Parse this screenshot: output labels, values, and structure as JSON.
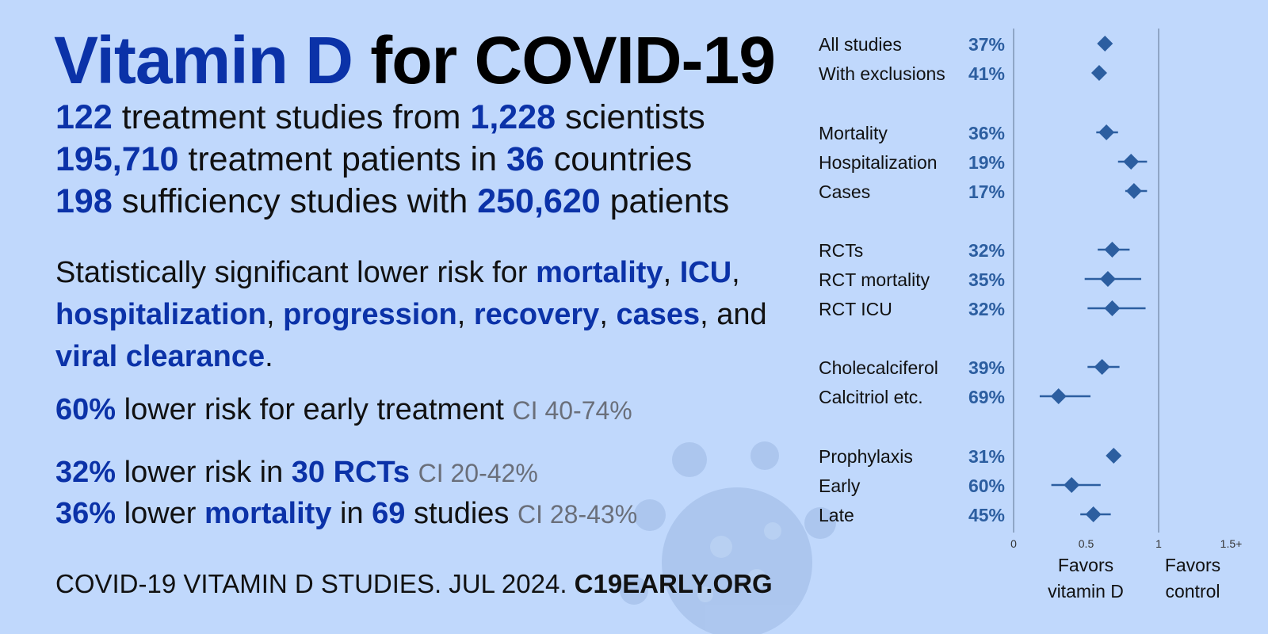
{
  "title": {
    "highlight": "Vitamin D",
    "rest": "for COVID-19"
  },
  "stats": [
    [
      {
        "v": "122",
        "h": true
      },
      {
        "v": " treatment studies from ",
        "h": false
      },
      {
        "v": "1,228",
        "h": true
      },
      {
        "v": " scientists",
        "h": false
      }
    ],
    [
      {
        "v": "195,710",
        "h": true
      },
      {
        "v": " treatment patients in ",
        "h": false
      },
      {
        "v": "36",
        "h": true
      },
      {
        "v": " countries",
        "h": false
      }
    ],
    [
      {
        "v": "198",
        "h": true
      },
      {
        "v": " sufficiency studies with ",
        "h": false
      },
      {
        "v": "250,620",
        "h": true
      },
      {
        "v": " patients",
        "h": false
      }
    ]
  ],
  "significant": [
    {
      "v": "Statistically significant lower risk for ",
      "h": false
    },
    {
      "v": "mortality",
      "h": true
    },
    {
      "v": ", ",
      "h": false
    },
    {
      "v": "ICU",
      "h": true
    },
    {
      "v": ", ",
      "h": false
    },
    {
      "v": "hospitalization",
      "h": true
    },
    {
      "v": ", ",
      "h": false
    },
    {
      "v": "progression",
      "h": true
    },
    {
      "v": ", ",
      "h": false
    },
    {
      "v": "recovery",
      "h": true
    },
    {
      "v": ", ",
      "h": false
    },
    {
      "v": "cases",
      "h": true
    },
    {
      "v": ", and ",
      "h": false
    },
    {
      "v": "viral clearance",
      "h": true
    },
    {
      "v": ".",
      "h": false
    }
  ],
  "early": {
    "pct": "60%",
    "text": " lower risk for early treatment ",
    "ci": "CI 40-74%"
  },
  "rct": {
    "pct": "32%",
    "t1": " lower risk in ",
    "count": "30 RCTs",
    "ci": "CI 20-42%"
  },
  "mort": {
    "pct": "36%",
    "t1": " lower ",
    "word": "mortality",
    "t2": " in ",
    "count": "69",
    "t3": " studies ",
    "ci": "CI 28-43%"
  },
  "footer": {
    "text": "COVID-19 VITAMIN D STUDIES. JUL 2024. ",
    "source": "C19EARLY.ORG"
  },
  "colors": {
    "accent": "#0b32a8",
    "marker": "#2c5ea0",
    "background": "#c0d8fc"
  },
  "chart_data": {
    "type": "scatter",
    "xlim": [
      0,
      1.5
    ],
    "x_ticks": [
      "0",
      "0.5",
      "1",
      "1.5+"
    ],
    "favors_left": [
      "Favors",
      "vitamin D"
    ],
    "favors_right": [
      "Favors",
      "control"
    ],
    "rows": [
      {
        "label": "All studies",
        "pct": "37%",
        "rr": 0.63,
        "lo": 0.61,
        "hi": 0.66
      },
      {
        "label": "With exclusions",
        "pct": "41%",
        "rr": 0.59,
        "lo": 0.56,
        "hi": 0.62
      },
      {
        "label": "Mortality",
        "pct": "36%",
        "rr": 0.64,
        "lo": 0.57,
        "hi": 0.72
      },
      {
        "label": "Hospitalization",
        "pct": "19%",
        "rr": 0.81,
        "lo": 0.72,
        "hi": 0.92
      },
      {
        "label": "Cases",
        "pct": "17%",
        "rr": 0.83,
        "lo": 0.77,
        "hi": 0.92
      },
      {
        "label": "RCTs",
        "pct": "32%",
        "rr": 0.68,
        "lo": 0.58,
        "hi": 0.8
      },
      {
        "label": "RCT mortality",
        "pct": "35%",
        "rr": 0.65,
        "lo": 0.49,
        "hi": 0.88
      },
      {
        "label": "RCT ICU",
        "pct": "32%",
        "rr": 0.68,
        "lo": 0.51,
        "hi": 0.91
      },
      {
        "label": "Cholecalciferol",
        "pct": "39%",
        "rr": 0.61,
        "lo": 0.51,
        "hi": 0.73
      },
      {
        "label": "Calcitriol etc.",
        "pct": "69%",
        "rr": 0.31,
        "lo": 0.18,
        "hi": 0.53
      },
      {
        "label": "Prophylaxis",
        "pct": "31%",
        "rr": 0.69,
        "lo": 0.65,
        "hi": 0.73
      },
      {
        "label": "Early",
        "pct": "60%",
        "rr": 0.4,
        "lo": 0.26,
        "hi": 0.6
      },
      {
        "label": "Late",
        "pct": "45%",
        "rr": 0.55,
        "lo": 0.46,
        "hi": 0.67
      }
    ]
  }
}
